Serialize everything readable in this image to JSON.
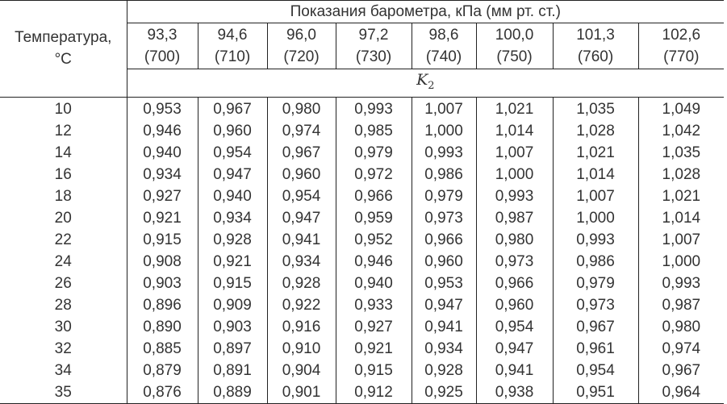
{
  "table": {
    "temp_header_line1": "Температура,",
    "temp_header_line2": "°C",
    "pressure_header": "Показания барометра, кПа (мм рт. ст.)",
    "k_label": "K",
    "k_subscript": "2",
    "pressures": [
      {
        "kpa": "93,3",
        "mm": "(700)"
      },
      {
        "kpa": "94,6",
        "mm": "(710)"
      },
      {
        "kpa": "96,0",
        "mm": "(720)"
      },
      {
        "kpa": "97,2",
        "mm": "(730)"
      },
      {
        "kpa": "98,6",
        "mm": "(740)"
      },
      {
        "kpa": "100,0",
        "mm": "(750)"
      },
      {
        "kpa": "101,3",
        "mm": "(760)"
      },
      {
        "kpa": "102,6",
        "mm": "(770)"
      }
    ],
    "rows": [
      {
        "t": "10",
        "v": [
          "0,953",
          "0,967",
          "0,980",
          "0,993",
          "1,007",
          "1,021",
          "1,035",
          "1,049"
        ]
      },
      {
        "t": "12",
        "v": [
          "0,946",
          "0,960",
          "0,974",
          "0,985",
          "1,000",
          "1,014",
          "1,028",
          "1,042"
        ]
      },
      {
        "t": "14",
        "v": [
          "0,940",
          "0,954",
          "0,967",
          "0,979",
          "0,993",
          "1,007",
          "1,021",
          "1,035"
        ]
      },
      {
        "t": "16",
        "v": [
          "0,934",
          "0,947",
          "0,960",
          "0,972",
          "0,986",
          "1,000",
          "1,014",
          "1,028"
        ]
      },
      {
        "t": "18",
        "v": [
          "0,927",
          "0,940",
          "0,954",
          "0,966",
          "0,979",
          "0,993",
          "1,007",
          "1,021"
        ]
      },
      {
        "t": "20",
        "v": [
          "0,921",
          "0,934",
          "0,947",
          "0,959",
          "0,973",
          "0,987",
          "1,000",
          "1,014"
        ]
      },
      {
        "t": "22",
        "v": [
          "0,915",
          "0,928",
          "0,941",
          "0,952",
          "0,966",
          "0,980",
          "0,993",
          "1,007"
        ]
      },
      {
        "t": "24",
        "v": [
          "0,908",
          "0,921",
          "0,934",
          "0,946",
          "0,960",
          "0,973",
          "0,986",
          "1,000"
        ]
      },
      {
        "t": "26",
        "v": [
          "0,903",
          "0,915",
          "0,928",
          "0,940",
          "0,953",
          "0,966",
          "0,979",
          "0,993"
        ]
      },
      {
        "t": "28",
        "v": [
          "0,896",
          "0,909",
          "0,922",
          "0,933",
          "0,947",
          "0,960",
          "0,973",
          "0,987"
        ]
      },
      {
        "t": "30",
        "v": [
          "0,890",
          "0,903",
          "0,916",
          "0,927",
          "0,941",
          "0,954",
          "0,967",
          "0,980"
        ]
      },
      {
        "t": "32",
        "v": [
          "0,885",
          "0,897",
          "0,910",
          "0,921",
          "0,934",
          "0,947",
          "0,961",
          "0,974"
        ]
      },
      {
        "t": "34",
        "v": [
          "0,879",
          "0,891",
          "0,904",
          "0,915",
          "0,928",
          "0,941",
          "0,954",
          "0,967"
        ]
      },
      {
        "t": "35",
        "v": [
          "0,876",
          "0,889",
          "0,901",
          "0,912",
          "0,925",
          "0,938",
          "0,951",
          "0,964"
        ]
      }
    ]
  }
}
